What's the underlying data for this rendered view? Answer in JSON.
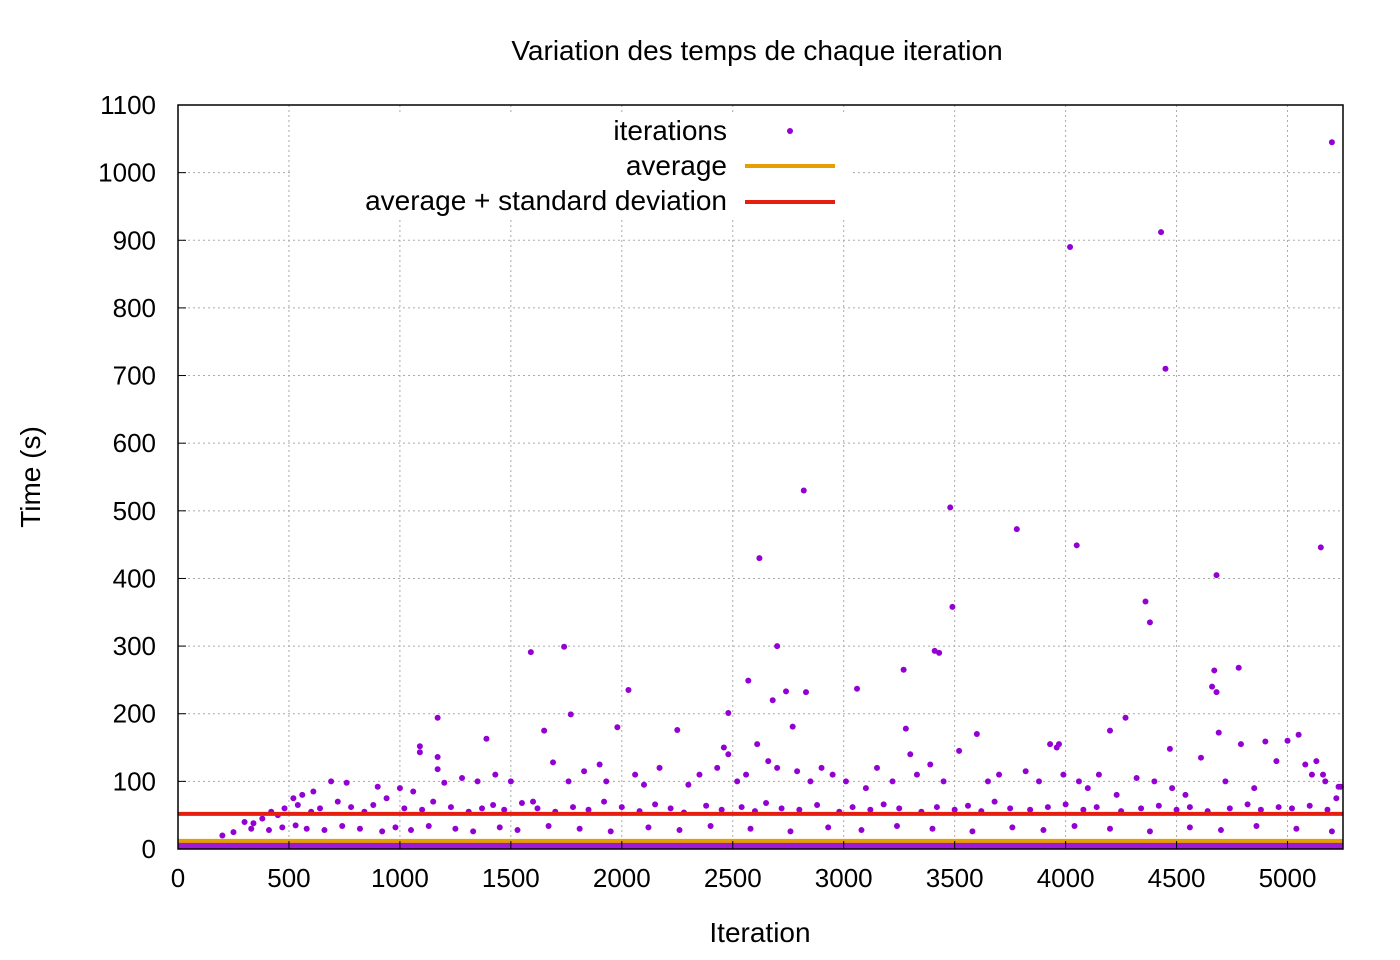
{
  "chart_data": {
    "type": "scatter",
    "title": "Variation des temps de chaque iteration",
    "xlabel": "Iteration",
    "ylabel": "Time (s)",
    "xlim": [
      0,
      5250
    ],
    "ylim": [
      0,
      1100
    ],
    "xticks": [
      0,
      500,
      1000,
      1500,
      2000,
      2500,
      3000,
      3500,
      4000,
      4500,
      5000
    ],
    "yticks": [
      0,
      100,
      200,
      300,
      400,
      500,
      600,
      700,
      800,
      900,
      1000,
      1100
    ],
    "grid": true,
    "legend_position": "top-center",
    "colors": {
      "iterations": "#9400d3",
      "average": "#e69f00",
      "average_std": "#e51e10"
    },
    "series": [
      {
        "name": "iterations",
        "kind": "points",
        "points": [
          [
            1590,
            291
          ],
          [
            1740,
            299
          ],
          [
            1770,
            199
          ],
          [
            1170,
            194
          ],
          [
            1170,
            136
          ],
          [
            1170,
            118
          ],
          [
            1090,
            152
          ],
          [
            1090,
            143
          ],
          [
            1390,
            163
          ],
          [
            2030,
            235
          ],
          [
            2250,
            176
          ],
          [
            2480,
            201
          ],
          [
            2570,
            249
          ],
          [
            2620,
            430
          ],
          [
            2680,
            220
          ],
          [
            2700,
            300
          ],
          [
            2740,
            233
          ],
          [
            2770,
            181
          ],
          [
            2820,
            530
          ],
          [
            2830,
            232
          ],
          [
            3060,
            237
          ],
          [
            3270,
            265
          ],
          [
            3280,
            178
          ],
          [
            3410,
            293
          ],
          [
            3430,
            290
          ],
          [
            3480,
            505
          ],
          [
            3490,
            358
          ],
          [
            3780,
            473
          ],
          [
            3930,
            155
          ],
          [
            3960,
            150
          ],
          [
            3970,
            155
          ],
          [
            4020,
            890
          ],
          [
            4050,
            449
          ],
          [
            4200,
            175
          ],
          [
            4270,
            194
          ],
          [
            4360,
            366
          ],
          [
            4380,
            335
          ],
          [
            4430,
            912
          ],
          [
            4450,
            710
          ],
          [
            4470,
            148
          ],
          [
            4660,
            240
          ],
          [
            4670,
            264
          ],
          [
            4680,
            405
          ],
          [
            4680,
            232
          ],
          [
            4690,
            172
          ],
          [
            4780,
            268
          ],
          [
            4790,
            155
          ],
          [
            4900,
            159
          ],
          [
            5050,
            169
          ],
          [
            5130,
            130
          ],
          [
            5150,
            446
          ],
          [
            5170,
            100
          ],
          [
            5200,
            1045
          ],
          [
            5230,
            92
          ],
          [
            2740,
            1060
          ],
          [
            520,
            75
          ],
          [
            560,
            80
          ],
          [
            610,
            85
          ],
          [
            690,
            100
          ],
          [
            760,
            98
          ],
          [
            900,
            92
          ],
          [
            1000,
            90
          ],
          [
            1060,
            85
          ],
          [
            1200,
            98
          ],
          [
            1280,
            105
          ],
          [
            1350,
            100
          ],
          [
            1430,
            110
          ],
          [
            1500,
            100
          ],
          [
            1600,
            70
          ],
          [
            1650,
            175
          ],
          [
            1690,
            128
          ],
          [
            1760,
            100
          ],
          [
            1830,
            115
          ],
          [
            1900,
            125
          ],
          [
            1930,
            100
          ],
          [
            1980,
            180
          ],
          [
            2060,
            110
          ],
          [
            2100,
            95
          ],
          [
            2170,
            120
          ],
          [
            2300,
            95
          ],
          [
            2350,
            110
          ],
          [
            2430,
            120
          ],
          [
            2460,
            150
          ],
          [
            2480,
            140
          ],
          [
            2520,
            100
          ],
          [
            2560,
            110
          ],
          [
            2610,
            155
          ],
          [
            2660,
            130
          ],
          [
            2700,
            120
          ],
          [
            2790,
            115
          ],
          [
            2850,
            100
          ],
          [
            2900,
            120
          ],
          [
            2950,
            110
          ],
          [
            3010,
            100
          ],
          [
            3100,
            90
          ],
          [
            3150,
            120
          ],
          [
            3220,
            100
          ],
          [
            3300,
            140
          ],
          [
            3330,
            110
          ],
          [
            3390,
            125
          ],
          [
            3450,
            100
          ],
          [
            3520,
            145
          ],
          [
            3600,
            170
          ],
          [
            3650,
            100
          ],
          [
            3700,
            110
          ],
          [
            3820,
            115
          ],
          [
            3880,
            100
          ],
          [
            3990,
            110
          ],
          [
            4060,
            100
          ],
          [
            4100,
            90
          ],
          [
            4150,
            110
          ],
          [
            4230,
            80
          ],
          [
            4320,
            105
          ],
          [
            4400,
            100
          ],
          [
            4480,
            90
          ],
          [
            4540,
            80
          ],
          [
            4610,
            135
          ],
          [
            4720,
            100
          ],
          [
            4850,
            90
          ],
          [
            4950,
            130
          ],
          [
            5000,
            160
          ],
          [
            5080,
            125
          ],
          [
            5110,
            110
          ],
          [
            5160,
            110
          ],
          [
            5220,
            75
          ],
          [
            5240,
            92
          ],
          [
            300,
            40
          ],
          [
            340,
            38
          ],
          [
            380,
            45
          ],
          [
            420,
            55
          ],
          [
            450,
            50
          ],
          [
            480,
            60
          ],
          [
            540,
            65
          ],
          [
            600,
            55
          ],
          [
            640,
            60
          ],
          [
            720,
            70
          ],
          [
            780,
            62
          ],
          [
            840,
            55
          ],
          [
            880,
            65
          ],
          [
            940,
            75
          ],
          [
            1020,
            60
          ],
          [
            1100,
            58
          ],
          [
            1150,
            70
          ],
          [
            1230,
            62
          ],
          [
            1310,
            55
          ],
          [
            1370,
            60
          ],
          [
            1420,
            65
          ],
          [
            1470,
            58
          ],
          [
            1550,
            68
          ],
          [
            1620,
            60
          ],
          [
            1700,
            55
          ],
          [
            1780,
            62
          ],
          [
            1850,
            58
          ],
          [
            1920,
            70
          ],
          [
            2000,
            62
          ],
          [
            2080,
            56
          ],
          [
            2150,
            66
          ],
          [
            2220,
            60
          ],
          [
            2280,
            54
          ],
          [
            2380,
            64
          ],
          [
            2450,
            58
          ],
          [
            2540,
            62
          ],
          [
            2600,
            56
          ],
          [
            2650,
            68
          ],
          [
            2720,
            60
          ],
          [
            2800,
            58
          ],
          [
            2880,
            65
          ],
          [
            2980,
            55
          ],
          [
            3040,
            62
          ],
          [
            3120,
            58
          ],
          [
            3180,
            66
          ],
          [
            3250,
            60
          ],
          [
            3350,
            55
          ],
          [
            3420,
            62
          ],
          [
            3500,
            58
          ],
          [
            3560,
            64
          ],
          [
            3620,
            56
          ],
          [
            3680,
            70
          ],
          [
            3750,
            60
          ],
          [
            3840,
            58
          ],
          [
            3920,
            62
          ],
          [
            4000,
            66
          ],
          [
            4080,
            58
          ],
          [
            4140,
            62
          ],
          [
            4250,
            56
          ],
          [
            4340,
            60
          ],
          [
            4420,
            64
          ],
          [
            4500,
            58
          ],
          [
            4560,
            62
          ],
          [
            4640,
            56
          ],
          [
            4740,
            60
          ],
          [
            4820,
            66
          ],
          [
            4880,
            58
          ],
          [
            4960,
            62
          ],
          [
            5020,
            60
          ],
          [
            5100,
            64
          ],
          [
            5180,
            58
          ],
          [
            200,
            20
          ],
          [
            250,
            25
          ],
          [
            330,
            30
          ],
          [
            410,
            28
          ],
          [
            470,
            32
          ],
          [
            530,
            35
          ],
          [
            580,
            30
          ],
          [
            660,
            28
          ],
          [
            740,
            34
          ],
          [
            820,
            30
          ],
          [
            920,
            26
          ],
          [
            980,
            32
          ],
          [
            1050,
            28
          ],
          [
            1130,
            34
          ],
          [
            1250,
            30
          ],
          [
            1330,
            26
          ],
          [
            1450,
            32
          ],
          [
            1530,
            28
          ],
          [
            1670,
            34
          ],
          [
            1810,
            30
          ],
          [
            1950,
            26
          ],
          [
            2120,
            32
          ],
          [
            2260,
            28
          ],
          [
            2400,
            34
          ],
          [
            2580,
            30
          ],
          [
            2760,
            26
          ],
          [
            2930,
            32
          ],
          [
            3080,
            28
          ],
          [
            3240,
            34
          ],
          [
            3400,
            30
          ],
          [
            3580,
            26
          ],
          [
            3760,
            32
          ],
          [
            3900,
            28
          ],
          [
            4040,
            34
          ],
          [
            4200,
            30
          ],
          [
            4380,
            26
          ],
          [
            4560,
            32
          ],
          [
            4700,
            28
          ],
          [
            4860,
            34
          ],
          [
            5040,
            30
          ],
          [
            5200,
            26
          ]
        ]
      },
      {
        "name": "average",
        "kind": "hline",
        "value": 12
      },
      {
        "name": "average + standard deviation",
        "kind": "hline",
        "value": 52
      }
    ]
  }
}
